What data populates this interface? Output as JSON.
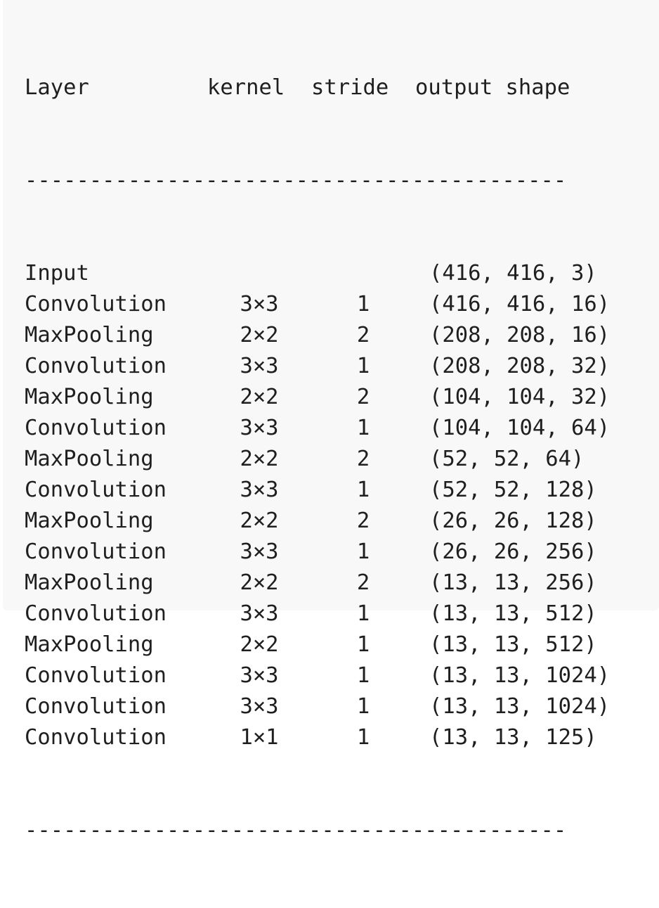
{
  "table": {
    "header": {
      "layer": "Layer",
      "kernel": "kernel",
      "stride": "stride",
      "output": "output shape"
    },
    "divider": "------------------------------------------",
    "rows": [
      {
        "layer": "Input",
        "kernel": "",
        "stride": "",
        "output": "(416, 416, 3)"
      },
      {
        "layer": "Convolution",
        "kernel": "3×3",
        "stride": "1",
        "output": "(416, 416, 16)"
      },
      {
        "layer": "MaxPooling",
        "kernel": "2×2",
        "stride": "2",
        "output": "(208, 208, 16)"
      },
      {
        "layer": "Convolution",
        "kernel": "3×3",
        "stride": "1",
        "output": "(208, 208, 32)"
      },
      {
        "layer": "MaxPooling",
        "kernel": "2×2",
        "stride": "2",
        "output": "(104, 104, 32)"
      },
      {
        "layer": "Convolution",
        "kernel": "3×3",
        "stride": "1",
        "output": "(104, 104, 64)"
      },
      {
        "layer": "MaxPooling",
        "kernel": "2×2",
        "stride": "2",
        "output": "(52, 52, 64)"
      },
      {
        "layer": "Convolution",
        "kernel": "3×3",
        "stride": "1",
        "output": "(52, 52, 128)"
      },
      {
        "layer": "MaxPooling",
        "kernel": "2×2",
        "stride": "2",
        "output": "(26, 26, 128)"
      },
      {
        "layer": "Convolution",
        "kernel": "3×3",
        "stride": "1",
        "output": "(26, 26, 256)"
      },
      {
        "layer": "MaxPooling",
        "kernel": "2×2",
        "stride": "2",
        "output": "(13, 13, 256)"
      },
      {
        "layer": "Convolution",
        "kernel": "3×3",
        "stride": "1",
        "output": "(13, 13, 512)"
      },
      {
        "layer": "MaxPooling",
        "kernel": "2×2",
        "stride": "1",
        "output": "(13, 13, 512)"
      },
      {
        "layer": "Convolution",
        "kernel": "3×3",
        "stride": "1",
        "output": "(13, 13, 1024)"
      },
      {
        "layer": "Convolution",
        "kernel": "3×3",
        "stride": "1",
        "output": "(13, 13, 1024)"
      },
      {
        "layer": "Convolution",
        "kernel": "1×1",
        "stride": "1",
        "output": "(13, 13, 125)"
      }
    ]
  },
  "colors": {
    "background": "#f8f8f8",
    "text": "#1f1f1f"
  }
}
